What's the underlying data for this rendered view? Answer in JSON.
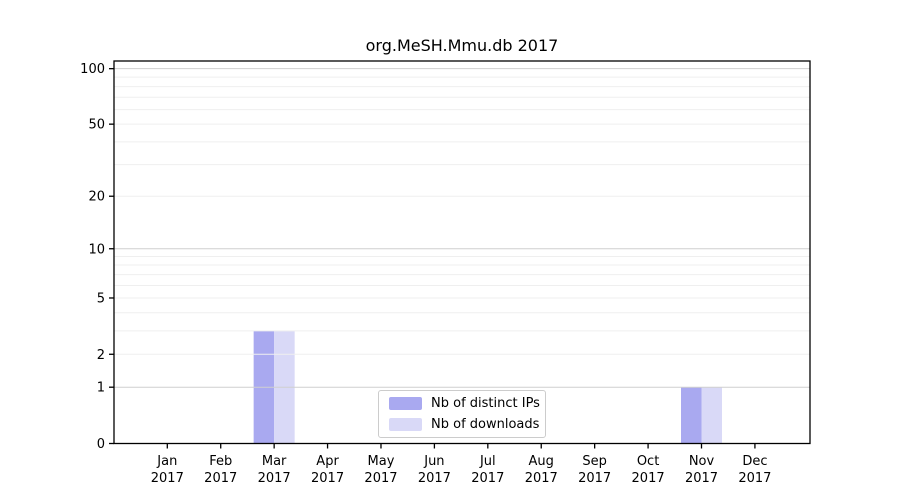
{
  "chart_data": {
    "type": "bar",
    "title": "org.MeSH.Mmu.db 2017",
    "categories": [
      {
        "month": "Jan",
        "year": "2017"
      },
      {
        "month": "Feb",
        "year": "2017"
      },
      {
        "month": "Mar",
        "year": "2017"
      },
      {
        "month": "Apr",
        "year": "2017"
      },
      {
        "month": "May",
        "year": "2017"
      },
      {
        "month": "Jun",
        "year": "2017"
      },
      {
        "month": "Jul",
        "year": "2017"
      },
      {
        "month": "Aug",
        "year": "2017"
      },
      {
        "month": "Sep",
        "year": "2017"
      },
      {
        "month": "Oct",
        "year": "2017"
      },
      {
        "month": "Nov",
        "year": "2017"
      },
      {
        "month": "Dec",
        "year": "2017"
      }
    ],
    "series": [
      {
        "name": "Nb of distinct IPs",
        "color": "#a9a9f0",
        "values": [
          0,
          0,
          3,
          0,
          0,
          0,
          0,
          0,
          0,
          0,
          1,
          0
        ]
      },
      {
        "name": "Nb of downloads",
        "color": "#d9d9f7",
        "values": [
          0,
          0,
          3,
          0,
          0,
          0,
          0,
          0,
          0,
          0,
          1,
          0
        ]
      }
    ],
    "xlabel": "",
    "ylabel": "",
    "y_axis": {
      "scale": "log1p",
      "ylim": [
        0,
        110
      ],
      "ticks": [
        0,
        1,
        2,
        5,
        10,
        20,
        50,
        100
      ],
      "grid_minor": [
        2,
        3,
        4,
        5,
        6,
        7,
        8,
        9,
        20,
        30,
        40,
        50,
        60,
        70,
        80,
        90
      ],
      "grid_major": [
        1,
        10,
        100
      ]
    },
    "grid": true,
    "legend_position": "bottom-center",
    "colors": {
      "axis": "#000000",
      "grid_minor": "#efefef",
      "grid_major": "#cfcfcf",
      "background": "#ffffff"
    }
  }
}
